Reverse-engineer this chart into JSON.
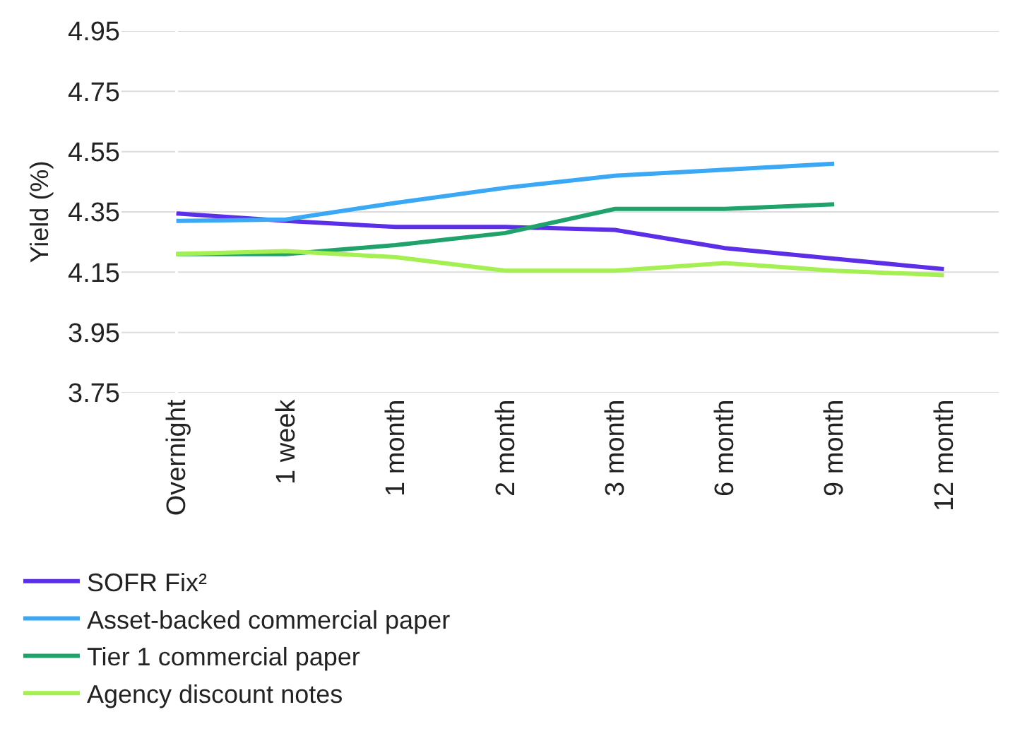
{
  "chart_data": {
    "type": "line",
    "ylabel": "Yield (%)",
    "categories": [
      "Overnight",
      "1 week",
      "1 month",
      "2 month",
      "3 month",
      "6 month",
      "9 month",
      "12 month"
    ],
    "series": [
      {
        "name": "SOFR Fix²",
        "color": "#5b2ee8",
        "values": [
          4.345,
          4.32,
          4.3,
          4.3,
          4.29,
          4.23,
          4.195,
          4.16
        ]
      },
      {
        "name": "Asset-backed commercial paper",
        "color": "#3aa8f5",
        "values": [
          4.32,
          4.325,
          4.38,
          4.43,
          4.47,
          4.49,
          4.51,
          null
        ]
      },
      {
        "name": "Tier 1 commercial paper",
        "color": "#1fa36b",
        "values": [
          4.21,
          4.21,
          4.24,
          4.28,
          4.36,
          4.36,
          4.375,
          null
        ]
      },
      {
        "name": "Agency discount notes",
        "color": "#a3f050",
        "values": [
          4.21,
          4.22,
          4.2,
          4.155,
          4.155,
          4.18,
          4.155,
          4.14
        ]
      }
    ],
    "ylim": [
      3.75,
      4.95
    ],
    "yticks": [
      3.75,
      3.95,
      4.15,
      4.35,
      4.55,
      4.75,
      4.95
    ],
    "grid": "y",
    "legend": "bottom left",
    "marker": "none",
    "line_style": "solid"
  }
}
